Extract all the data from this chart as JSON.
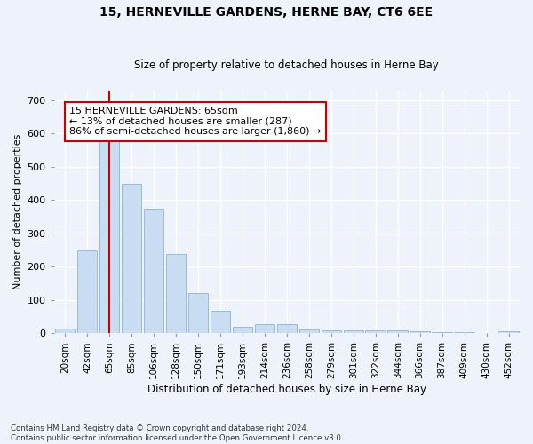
{
  "title": "15, HERNEVILLE GARDENS, HERNE BAY, CT6 6EE",
  "subtitle": "Size of property relative to detached houses in Herne Bay",
  "xlabel": "Distribution of detached houses by size in Herne Bay",
  "ylabel": "Number of detached properties",
  "categories": [
    "20sqm",
    "42sqm",
    "65sqm",
    "85sqm",
    "106sqm",
    "128sqm",
    "150sqm",
    "171sqm",
    "193sqm",
    "214sqm",
    "236sqm",
    "258sqm",
    "279sqm",
    "301sqm",
    "322sqm",
    "344sqm",
    "366sqm",
    "387sqm",
    "409sqm",
    "430sqm",
    "452sqm"
  ],
  "values": [
    15,
    248,
    585,
    450,
    375,
    238,
    120,
    68,
    20,
    28,
    28,
    12,
    10,
    9,
    8,
    8,
    6,
    4,
    4,
    1,
    5
  ],
  "bar_color": "#c9ddf2",
  "bar_edge_color": "#8ab4d8",
  "property_line_color": "#cc0000",
  "annotation_text": "15 HERNEVILLE GARDENS: 65sqm\n← 13% of detached houses are smaller (287)\n86% of semi-detached houses are larger (1,860) →",
  "annotation_box_color": "#ffffff",
  "annotation_box_edge": "#cc0000",
  "ylim": [
    0,
    730
  ],
  "yticks": [
    0,
    100,
    200,
    300,
    400,
    500,
    600,
    700
  ],
  "background_color": "#eef2fb",
  "grid_color": "#ffffff",
  "footnote": "Contains HM Land Registry data © Crown copyright and database right 2024.\nContains public sector information licensed under the Open Government Licence v3.0."
}
